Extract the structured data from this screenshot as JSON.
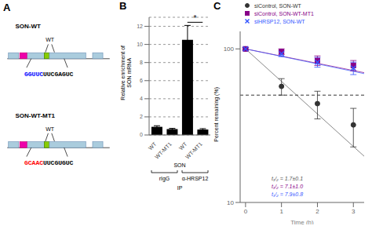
{
  "chart_data": [
    {
      "type": "diagram",
      "title": "A",
      "constructs": [
        {
          "name": "SON-WT",
          "label": "WT",
          "sequence": [
            {
              "text": "GGUUC",
              "color": "#0000FF"
            },
            {
              "text": "UUCGAGUC",
              "color": "#000000"
            }
          ]
        },
        {
          "name": "SON-WT-MT1",
          "label": "WT",
          "sequence": [
            {
              "text": "GCAAC",
              "color": "#FF0000"
            },
            {
              "text": "UUCGUGUC",
              "color": "#000000"
            }
          ]
        }
      ]
    },
    {
      "type": "bar",
      "title": "B",
      "ylabel": "Relative enrichment of\nSON mRNA",
      "categories": [
        "WT",
        "WT-MT1",
        "WT",
        "WT-MT1"
      ],
      "category_title": "SON",
      "groups": [
        "rIgG",
        "α-HRSP12"
      ],
      "group_title": "IP",
      "values": [
        0.9,
        0.65,
        10.5,
        0.6
      ],
      "errors": [
        0.12,
        0.08,
        1.6,
        0.1
      ],
      "color": "#000000",
      "ylim": [
        0,
        13
      ],
      "yticks": [
        0,
        2,
        4,
        6,
        8,
        10,
        12
      ],
      "grid": true,
      "significance": "*"
    },
    {
      "type": "scatter",
      "title": "C",
      "xlabel": "Time (h)",
      "ylabel": "Percent remaining (%)",
      "log": "y",
      "xlim": [
        -0.15,
        3.3
      ],
      "ylim": [
        10,
        130
      ],
      "xticks": [
        0,
        1,
        2,
        3
      ],
      "yticks": [
        10,
        100
      ],
      "legend": "top",
      "hline": 50,
      "series": [
        {
          "name": "siControl, SON-WT",
          "color": "#333333",
          "marker": "circle",
          "x": [
            0,
            1,
            2,
            3
          ],
          "values": [
            100,
            57,
            44,
            32
          ],
          "errors": [
            2,
            7,
            9,
            9
          ]
        },
        {
          "name": "siControl, SON-WT-MT1",
          "color": "#880088",
          "marker": "square",
          "x": [
            0,
            1,
            2,
            3
          ],
          "values": [
            100,
            96,
            84,
            78
          ],
          "errors": [
            2,
            4,
            6,
            6
          ]
        },
        {
          "name": "siHRSP12, SON-WT",
          "color": "#3355FF",
          "marker": "x",
          "x": [
            0,
            1,
            2,
            3
          ],
          "values": [
            100,
            93,
            82,
            75
          ],
          "errors": [
            2,
            4,
            6,
            7
          ]
        }
      ],
      "trendlines": [
        {
          "x": [
            0,
            3.3
          ],
          "values": [
            100,
            20
          ],
          "color": "#555555"
        },
        {
          "x": [
            0,
            3.3
          ],
          "values": [
            100,
            70
          ],
          "color": "#880088"
        },
        {
          "x": [
            0,
            3.3
          ],
          "values": [
            100,
            69
          ],
          "color": "#3355FF"
        }
      ],
      "annotations": [
        {
          "text": "t₁/₂ = 1.7±0.1",
          "color": "#555555"
        },
        {
          "text": "t₁/₂ = 7.1±1.0",
          "color": "#880088"
        },
        {
          "text": "t₁/₂ = 7.9±0.8",
          "color": "#3355FF"
        }
      ]
    }
  ]
}
